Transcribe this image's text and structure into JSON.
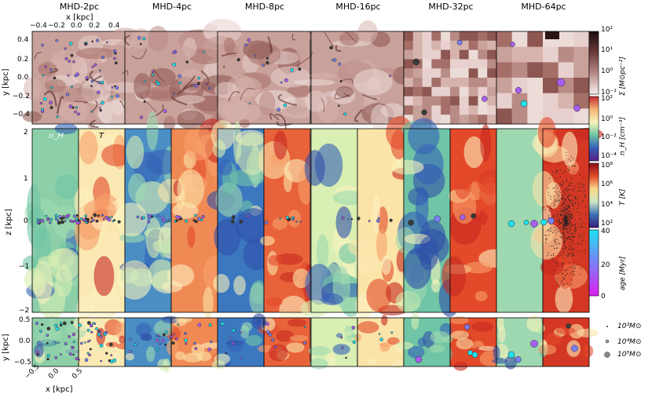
{
  "columns": [
    "MHD-2pc",
    "MHD-4pc",
    "MHD-8pc",
    "MHD-16pc",
    "MHD-32pc",
    "MHD-64pc"
  ],
  "top_row": {
    "xlabel": "x [kpc]",
    "ylabel": "y [kpc]",
    "x_ticks": [
      "−0.4",
      "−0.2",
      "0.0",
      "0.2",
      "0.4"
    ],
    "y_ticks": [
      "0.4",
      "0.2",
      "0.0",
      "−0.2",
      "−0.4"
    ]
  },
  "middle_row": {
    "ylabel": "z [kpc]",
    "y_ticks": [
      "2",
      "1",
      "0",
      "−1",
      "−2"
    ],
    "panel_labels": {
      "density": "n_H",
      "temperature": "T"
    }
  },
  "bottom_row": {
    "ylabel": "y [kpc]",
    "xlabel": "x [kpc]",
    "y_ticks": [
      "0.5",
      "0.0",
      "−0.5"
    ],
    "x_ticks": [
      "−0.5",
      "0.0",
      "0.5"
    ]
  },
  "colorbars": [
    {
      "label": "Σ [M⊙pc⁻²]",
      "ticks": [
        "10²",
        "10¹",
        "10⁰",
        "10⁻¹"
      ],
      "colors": [
        "#1c0c0c",
        "#6b3a3a",
        "#b98a8a",
        "#f4ecec"
      ]
    },
    {
      "label": "n_H [cm⁻³]",
      "ticks": [
        "10²",
        "10⁰",
        "10⁻²",
        "10⁻⁴"
      ],
      "colors": [
        "#c62830",
        "#f3b374",
        "#f8f4bc",
        "#6fc5a5",
        "#3460b8",
        "#5a1f8a"
      ]
    },
    {
      "label": "T [K]",
      "ticks": [
        "10⁸",
        "10⁶",
        "10⁴",
        "10²"
      ],
      "colors": [
        "#8b0f1b",
        "#e34a2a",
        "#f9d68a",
        "#cfe8c2",
        "#3a6fb8",
        "#3a1f7a"
      ]
    },
    {
      "label": "age [Myr]",
      "ticks": [
        "40",
        "20",
        "0"
      ],
      "colors": [
        "#1fe2f2",
        "#7b7ff5",
        "#e01df0"
      ]
    }
  ],
  "legend": [
    "10³M⊙",
    "10⁴M⊙",
    "10⁵M⊙"
  ]
}
